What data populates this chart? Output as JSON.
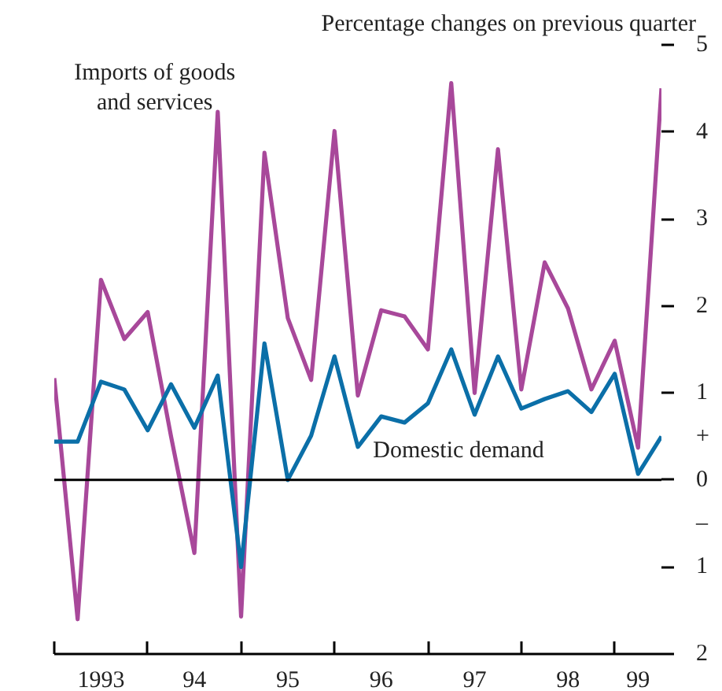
{
  "chart_data": {
    "type": "line",
    "ylabel": "Percentage changes on previous quarter",
    "categories": [
      null,
      null,
      "1993",
      null,
      null,
      null,
      "94",
      null,
      null,
      null,
      "95",
      null,
      null,
      null,
      "96",
      null,
      null,
      null,
      "97",
      null,
      null,
      null,
      "98",
      null,
      null,
      "99",
      null
    ],
    "series": [
      {
        "name": "Imports of goods and services",
        "color": "#a8489a",
        "values": [
          1.17,
          -1.6,
          2.3,
          1.62,
          1.93,
          0.5,
          -0.84,
          4.23,
          -1.57,
          3.76,
          1.86,
          1.15,
          4.01,
          0.97,
          1.95,
          1.88,
          1.5,
          4.56,
          1.0,
          3.8,
          1.04,
          2.5,
          1.97,
          1.04,
          1.6,
          0.37,
          4.5
        ]
      },
      {
        "name": "Domestic demand",
        "color": "#0b6fa8",
        "values": [
          0.44,
          0.44,
          1.13,
          1.04,
          0.57,
          1.1,
          0.6,
          1.2,
          -1.0,
          1.57,
          0.0,
          0.51,
          1.42,
          0.38,
          0.73,
          0.66,
          0.88,
          1.5,
          0.75,
          1.42,
          0.82,
          0.93,
          1.02,
          0.78,
          1.22,
          0.07,
          0.5
        ]
      }
    ],
    "ylim": [
      -2,
      5
    ],
    "yticks": [
      {
        "value": -2,
        "label": "2"
      },
      {
        "value": -1,
        "label": "1"
      },
      {
        "value": -0.5,
        "label": "–"
      },
      0,
      {
        "value": 0.5,
        "label": "+"
      },
      1,
      2,
      3,
      4,
      5
    ],
    "ref_lines": [
      {
        "axis": "y",
        "value": 0,
        "color": "#000000"
      }
    ],
    "grid": false,
    "marker": "none",
    "line_style": "solid"
  }
}
